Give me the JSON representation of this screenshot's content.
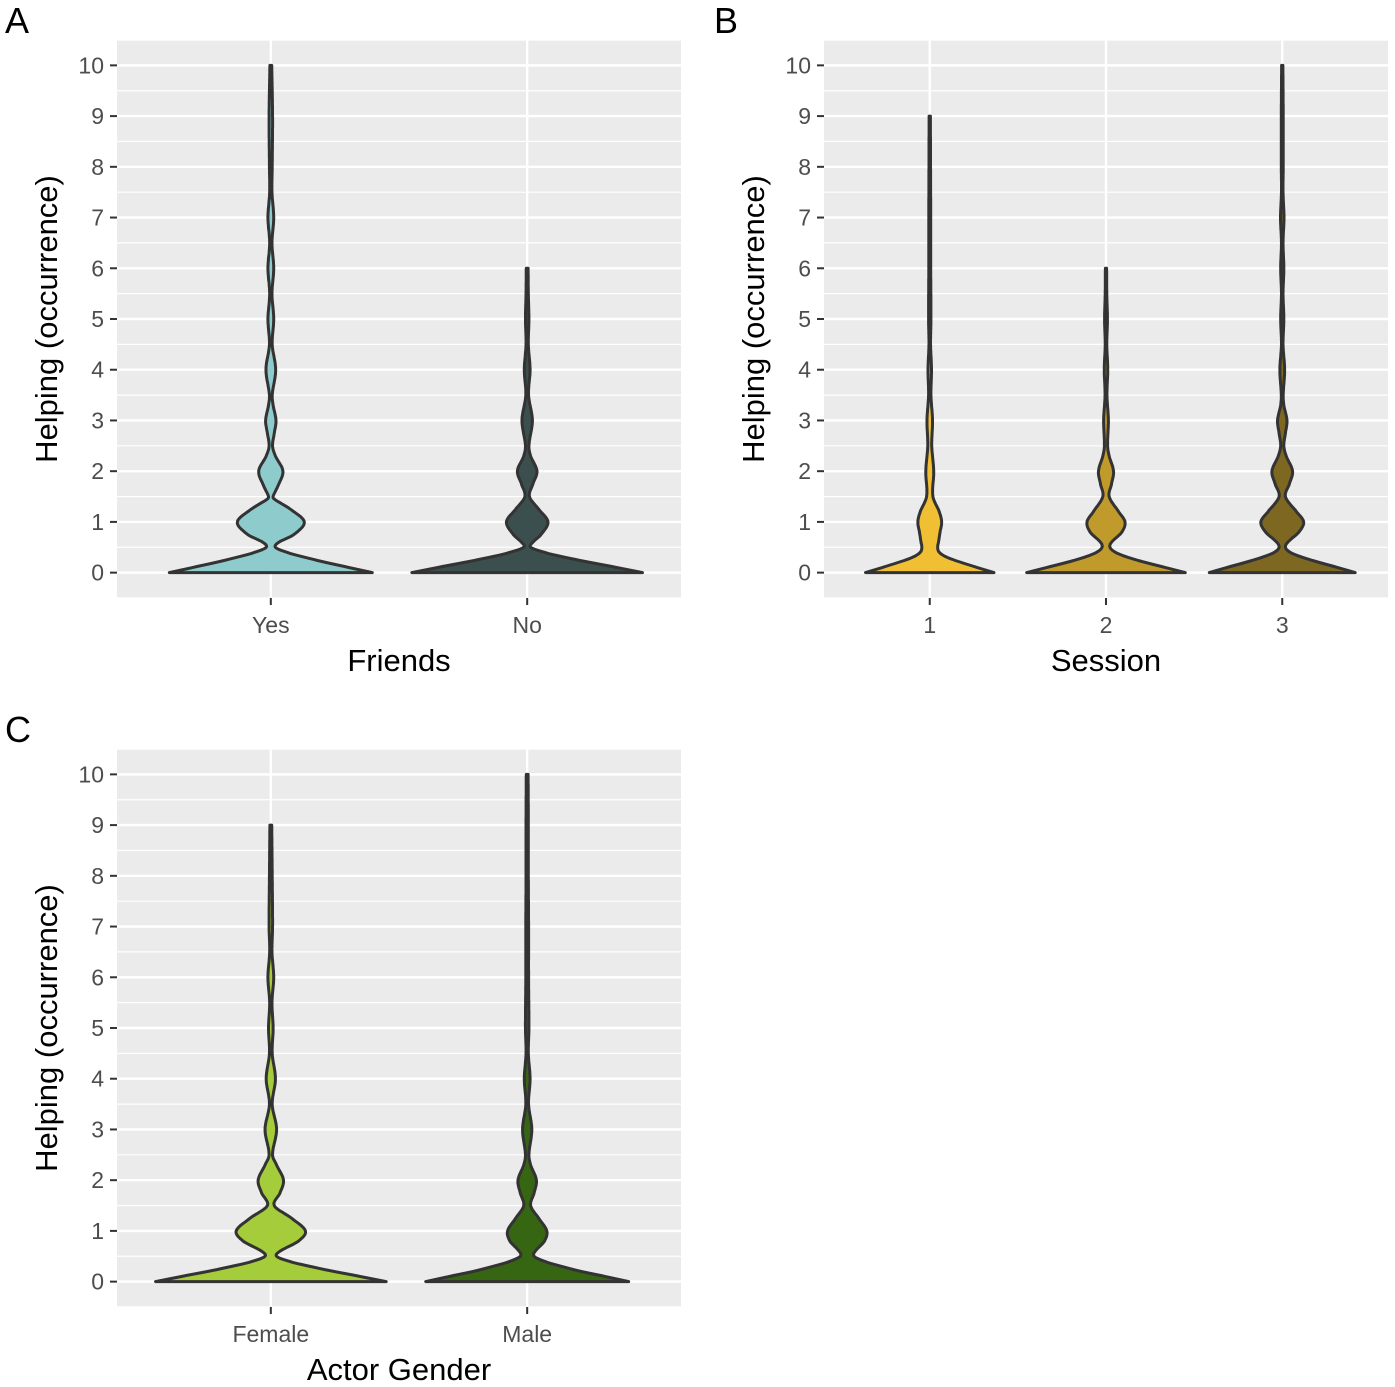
{
  "chart_data": [
    {
      "type": "violin",
      "panel_label": "A",
      "xlabel": "Friends",
      "ylabel": "Helping (occurrence)",
      "ylim": [
        -0.5,
        10.5
      ],
      "yticks": [
        "0",
        "1",
        "2",
        "3",
        "4",
        "5",
        "6",
        "7",
        "8",
        "9",
        "10"
      ],
      "grid": true,
      "categories": [
        "Yes",
        "No"
      ],
      "colors": [
        "#8ecbcc",
        "#3b4f4f"
      ],
      "series": [
        {
          "name": "Yes",
          "min": 0,
          "max": 10,
          "density": [
            [
              0,
              0.88
            ],
            [
              0.1,
              0.68
            ],
            [
              0.2,
              0.48
            ],
            [
              0.3,
              0.3
            ],
            [
              0.4,
              0.14
            ],
            [
              0.5,
              0.04
            ],
            [
              0.6,
              0.07
            ],
            [
              0.75,
              0.2
            ],
            [
              1,
              0.29
            ],
            [
              1.25,
              0.17
            ],
            [
              1.45,
              0.03
            ],
            [
              1.5,
              0.02
            ],
            [
              1.7,
              0.06
            ],
            [
              2,
              0.105
            ],
            [
              2.3,
              0.04
            ],
            [
              2.5,
              0.015
            ],
            [
              2.75,
              0.03
            ],
            [
              3,
              0.045
            ],
            [
              3.3,
              0.02
            ],
            [
              3.5,
              0.012
            ],
            [
              4,
              0.042
            ],
            [
              4.5,
              0.012
            ],
            [
              5,
              0.025
            ],
            [
              5.5,
              0.01
            ],
            [
              6,
              0.025
            ],
            [
              6.5,
              0.01
            ],
            [
              7,
              0.025
            ],
            [
              7.5,
              0.01
            ],
            [
              8,
              0.012
            ],
            [
              9,
              0.015
            ],
            [
              10,
              0.008
            ]
          ]
        },
        {
          "name": "No",
          "min": 0,
          "max": 6,
          "density": [
            [
              0,
              1.0
            ],
            [
              0.1,
              0.78
            ],
            [
              0.2,
              0.55
            ],
            [
              0.3,
              0.33
            ],
            [
              0.4,
              0.15
            ],
            [
              0.5,
              0.03
            ],
            [
              0.6,
              0.05
            ],
            [
              0.75,
              0.12
            ],
            [
              1,
              0.18
            ],
            [
              1.25,
              0.1
            ],
            [
              1.5,
              0.02
            ],
            [
              1.75,
              0.05
            ],
            [
              2,
              0.085
            ],
            [
              2.3,
              0.03
            ],
            [
              2.5,
              0.015
            ],
            [
              3,
              0.045
            ],
            [
              3.5,
              0.012
            ],
            [
              4,
              0.025
            ],
            [
              4.5,
              0.01
            ],
            [
              5,
              0.015
            ],
            [
              5.5,
              0.01
            ],
            [
              6,
              0.008
            ]
          ]
        }
      ]
    },
    {
      "type": "violin",
      "panel_label": "B",
      "xlabel": "Session",
      "ylabel": "Helping (occurrence)",
      "ylim": [
        -0.5,
        10.5
      ],
      "yticks": [
        "0",
        "1",
        "2",
        "3",
        "4",
        "5",
        "6",
        "7",
        "8",
        "9",
        "10"
      ],
      "grid": true,
      "categories": [
        "1",
        "2",
        "3"
      ],
      "colors": [
        "#f0bf33",
        "#c09a2a",
        "#7e6721"
      ],
      "series": [
        {
          "name": "1",
          "min": 0,
          "max": 9,
          "density": [
            [
              0,
              0.81
            ],
            [
              0.1,
              0.6
            ],
            [
              0.2,
              0.4
            ],
            [
              0.3,
              0.22
            ],
            [
              0.4,
              0.12
            ],
            [
              0.5,
              0.1
            ],
            [
              0.6,
              0.11
            ],
            [
              0.8,
              0.13
            ],
            [
              1,
              0.15
            ],
            [
              1.2,
              0.12
            ],
            [
              1.5,
              0.04
            ],
            [
              2,
              0.05
            ],
            [
              2.5,
              0.025
            ],
            [
              3,
              0.035
            ],
            [
              3.5,
              0.015
            ],
            [
              4,
              0.022
            ],
            [
              4.5,
              0.01
            ],
            [
              5,
              0.015
            ],
            [
              6,
              0.012
            ],
            [
              7,
              0.012
            ],
            [
              8,
              0.01
            ],
            [
              9,
              0.008
            ]
          ]
        },
        {
          "name": "2",
          "min": 0,
          "max": 6,
          "density": [
            [
              0,
              1.0
            ],
            [
              0.1,
              0.75
            ],
            [
              0.2,
              0.5
            ],
            [
              0.3,
              0.28
            ],
            [
              0.4,
              0.12
            ],
            [
              0.5,
              0.05
            ],
            [
              0.6,
              0.07
            ],
            [
              0.8,
              0.2
            ],
            [
              1,
              0.24
            ],
            [
              1.2,
              0.16
            ],
            [
              1.5,
              0.04
            ],
            [
              1.75,
              0.07
            ],
            [
              2,
              0.095
            ],
            [
              2.3,
              0.04
            ],
            [
              2.5,
              0.02
            ],
            [
              3,
              0.03
            ],
            [
              3.5,
              0.012
            ],
            [
              4,
              0.022
            ],
            [
              4.5,
              0.01
            ],
            [
              5,
              0.018
            ],
            [
              5.5,
              0.01
            ],
            [
              6,
              0.008
            ]
          ]
        },
        {
          "name": "3",
          "min": 0,
          "max": 10,
          "density": [
            [
              0,
              0.92
            ],
            [
              0.1,
              0.7
            ],
            [
              0.2,
              0.47
            ],
            [
              0.3,
              0.26
            ],
            [
              0.4,
              0.1
            ],
            [
              0.5,
              0.04
            ],
            [
              0.6,
              0.07
            ],
            [
              0.8,
              0.21
            ],
            [
              1,
              0.27
            ],
            [
              1.2,
              0.18
            ],
            [
              1.5,
              0.04
            ],
            [
              1.75,
              0.09
            ],
            [
              2,
              0.13
            ],
            [
              2.3,
              0.05
            ],
            [
              2.5,
              0.02
            ],
            [
              2.75,
              0.04
            ],
            [
              3,
              0.06
            ],
            [
              3.3,
              0.02
            ],
            [
              3.5,
              0.012
            ],
            [
              4,
              0.03
            ],
            [
              4.5,
              0.01
            ],
            [
              5,
              0.02
            ],
            [
              5.5,
              0.01
            ],
            [
              6,
              0.02
            ],
            [
              6.5,
              0.01
            ],
            [
              7,
              0.022
            ],
            [
              7.5,
              0.01
            ],
            [
              8,
              0.012
            ],
            [
              9,
              0.012
            ],
            [
              10,
              0.008
            ]
          ]
        }
      ]
    },
    {
      "type": "violin",
      "panel_label": "C",
      "xlabel": "Actor Gender",
      "ylabel": "Helping (occurrence)",
      "ylim": [
        -0.5,
        10.5
      ],
      "yticks": [
        "0",
        "1",
        "2",
        "3",
        "4",
        "5",
        "6",
        "7",
        "8",
        "9",
        "10"
      ],
      "grid": true,
      "categories": [
        "Female",
        "Male"
      ],
      "colors": [
        "#a5cc3a",
        "#376613"
      ],
      "series": [
        {
          "name": "Female",
          "min": 0,
          "max": 9,
          "density": [
            [
              0,
              1.0
            ],
            [
              0.1,
              0.78
            ],
            [
              0.2,
              0.55
            ],
            [
              0.3,
              0.34
            ],
            [
              0.4,
              0.16
            ],
            [
              0.5,
              0.05
            ],
            [
              0.6,
              0.08
            ],
            [
              0.8,
              0.24
            ],
            [
              1,
              0.3
            ],
            [
              1.25,
              0.18
            ],
            [
              1.5,
              0.03
            ],
            [
              1.75,
              0.08
            ],
            [
              2,
              0.11
            ],
            [
              2.3,
              0.05
            ],
            [
              2.5,
              0.015
            ],
            [
              3,
              0.05
            ],
            [
              3.5,
              0.012
            ],
            [
              4,
              0.04
            ],
            [
              4.5,
              0.012
            ],
            [
              5,
              0.02
            ],
            [
              5.5,
              0.01
            ],
            [
              6,
              0.025
            ],
            [
              6.5,
              0.01
            ],
            [
              7,
              0.015
            ],
            [
              8,
              0.012
            ],
            [
              9,
              0.008
            ]
          ]
        },
        {
          "name": "Male",
          "min": 0,
          "max": 10,
          "density": [
            [
              0,
              0.88
            ],
            [
              0.1,
              0.68
            ],
            [
              0.2,
              0.47
            ],
            [
              0.3,
              0.3
            ],
            [
              0.4,
              0.15
            ],
            [
              0.5,
              0.06
            ],
            [
              0.6,
              0.07
            ],
            [
              0.8,
              0.15
            ],
            [
              1,
              0.17
            ],
            [
              1.25,
              0.1
            ],
            [
              1.5,
              0.03
            ],
            [
              1.75,
              0.06
            ],
            [
              2,
              0.08
            ],
            [
              2.3,
              0.03
            ],
            [
              2.5,
              0.015
            ],
            [
              3,
              0.04
            ],
            [
              3.5,
              0.012
            ],
            [
              4,
              0.025
            ],
            [
              4.5,
              0.01
            ],
            [
              5,
              0.015
            ],
            [
              6,
              0.012
            ],
            [
              7,
              0.012
            ],
            [
              8,
              0.01
            ],
            [
              9,
              0.01
            ],
            [
              10,
              0.008
            ]
          ]
        }
      ]
    }
  ]
}
